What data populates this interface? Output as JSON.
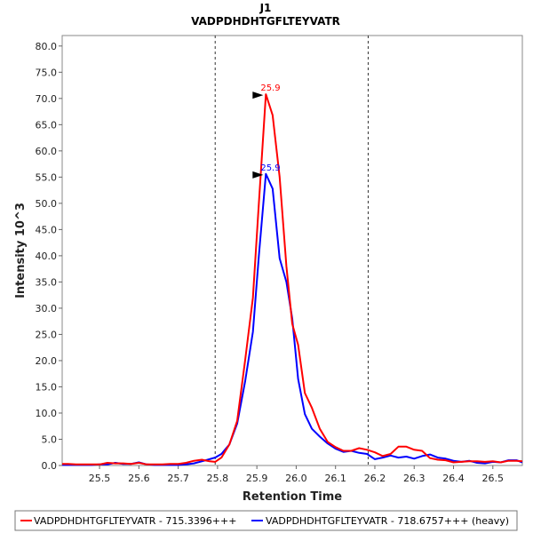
{
  "chart_data": {
    "type": "line",
    "title": "J1",
    "subtitle": "VADPDHDHTGFLTEYVATR",
    "xlabel": "Retention Time",
    "ylabel": "Intensity 10^3",
    "xlim": [
      25.405,
      26.575
    ],
    "ylim": [
      0,
      82
    ],
    "xticks": [
      25.5,
      25.6,
      25.7,
      25.8,
      25.9,
      26.0,
      26.1,
      26.2,
      26.3,
      26.4,
      26.5
    ],
    "xtick_labels": [
      "25.5",
      "25.6",
      "25.7",
      "25.8",
      "25.9",
      "26.0",
      "26.1",
      "26.2",
      "26.3",
      "26.4",
      "26.5"
    ],
    "yticks": [
      0,
      5,
      10,
      15,
      20,
      25,
      30,
      35,
      40,
      45,
      50,
      55,
      60,
      65,
      70,
      75,
      80
    ],
    "ytick_labels": [
      "0.0",
      "5.0",
      "10.0",
      "15.0",
      "20.0",
      "25.0",
      "30.0",
      "35.0",
      "40.0",
      "45.0",
      "50.0",
      "55.0",
      "60.0",
      "65.0",
      "70.0",
      "75.0",
      "80.0"
    ],
    "vlines": [
      25.794,
      26.183
    ],
    "series": [
      {
        "name": "VADPDHDHTGFLTEYVATR - 715.3396+++",
        "color": "#ff0000",
        "x": [
          25.405,
          25.42,
          25.44,
          25.46,
          25.48,
          25.5,
          25.52,
          25.54,
          25.56,
          25.58,
          25.6,
          25.62,
          25.64,
          25.66,
          25.68,
          25.7,
          25.72,
          25.74,
          25.76,
          25.78,
          25.794,
          25.81,
          25.83,
          25.85,
          25.87,
          25.89,
          25.905,
          25.923,
          25.94,
          25.958,
          25.975,
          25.99,
          26.005,
          26.022,
          26.04,
          26.06,
          26.08,
          26.1,
          26.12,
          26.14,
          26.16,
          26.18,
          26.2,
          26.22,
          26.24,
          26.26,
          26.28,
          26.3,
          26.32,
          26.34,
          26.36,
          26.38,
          26.4,
          26.42,
          26.44,
          26.46,
          26.48,
          26.5,
          26.52,
          26.54,
          26.56,
          26.575
        ],
        "y": [
          0.3,
          0.3,
          0.2,
          0.2,
          0.2,
          0.2,
          0.5,
          0.4,
          0.4,
          0.3,
          0.5,
          0.2,
          0.2,
          0.2,
          0.3,
          0.3,
          0.5,
          0.9,
          1.1,
          0.8,
          0.7,
          1.5,
          4,
          8.5,
          20,
          32,
          50,
          70.8,
          66.8,
          55,
          38,
          27,
          23,
          13.8,
          11,
          7,
          4.5,
          3.5,
          2.8,
          2.8,
          3.3,
          3,
          2.5,
          1.8,
          2.2,
          3.6,
          3.6,
          3.0,
          2.8,
          1.4,
          1.1,
          1.0,
          0.6,
          0.7,
          0.8,
          0.8,
          0.7,
          0.8,
          0.6,
          0.9,
          0.9,
          0.8
        ],
        "peak_label": "25.9",
        "peak_x": 25.923,
        "peak_y": 70.8
      },
      {
        "name": "VADPDHDHTGFLTEYVATR - 718.6757+++ (heavy)",
        "color": "#0000ff",
        "x": [
          25.405,
          25.42,
          25.44,
          25.46,
          25.48,
          25.5,
          25.52,
          25.54,
          25.56,
          25.58,
          25.6,
          25.62,
          25.64,
          25.66,
          25.68,
          25.7,
          25.72,
          25.74,
          25.76,
          25.78,
          25.794,
          25.81,
          25.83,
          25.85,
          25.87,
          25.89,
          25.905,
          25.923,
          25.94,
          25.958,
          25.975,
          25.99,
          26.005,
          26.022,
          26.04,
          26.06,
          26.08,
          26.1,
          26.12,
          26.14,
          26.16,
          26.18,
          26.2,
          26.22,
          26.24,
          26.26,
          26.28,
          26.3,
          26.32,
          26.34,
          26.36,
          26.38,
          26.4,
          26.42,
          26.44,
          26.46,
          26.48,
          26.5,
          26.52,
          26.54,
          26.56,
          26.575
        ],
        "y": [
          0.1,
          0.1,
          0.1,
          0.1,
          0.1,
          0.2,
          0.2,
          0.5,
          0.3,
          0.3,
          0.6,
          0.2,
          0.1,
          0.1,
          0.1,
          0.1,
          0.2,
          0.4,
          0.8,
          1.2,
          1.5,
          2.2,
          4,
          8,
          16,
          25.5,
          40,
          55.6,
          52.8,
          39.5,
          35,
          28,
          16.5,
          9.8,
          7,
          5.5,
          4.2,
          3.2,
          2.6,
          2.8,
          2.4,
          2.2,
          1.2,
          1.5,
          1.9,
          1.5,
          1.7,
          1.3,
          1.8,
          2.1,
          1.5,
          1.3,
          0.9,
          0.7,
          0.9,
          0.5,
          0.4,
          0.7,
          0.6,
          1,
          1,
          0.6
        ],
        "peak_label": "25.9",
        "peak_x": 25.923,
        "peak_y": 55.6
      }
    ]
  }
}
